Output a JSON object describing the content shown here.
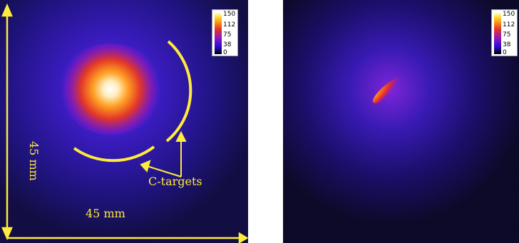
{
  "left_panel": {
    "colorbar": {
      "ticks": [
        "150",
        "112",
        "75",
        "38",
        "0"
      ]
    },
    "annotations": {
      "x_dimension": "45 mm",
      "y_dimension": "45 mm",
      "targets_label": "C-targets"
    }
  },
  "right_panel": {
    "colorbar": {
      "ticks": [
        "150",
        "112",
        "75",
        "38",
        "0"
      ]
    }
  },
  "colormap": {
    "low": "#000000",
    "mid_low": "#2a0bd0",
    "mid": "#8d16c8",
    "mid_high": "#e0352a",
    "high": "#ff9a10",
    "peak": "#ffffd8"
  },
  "annotation_color": "#ffeb3b"
}
